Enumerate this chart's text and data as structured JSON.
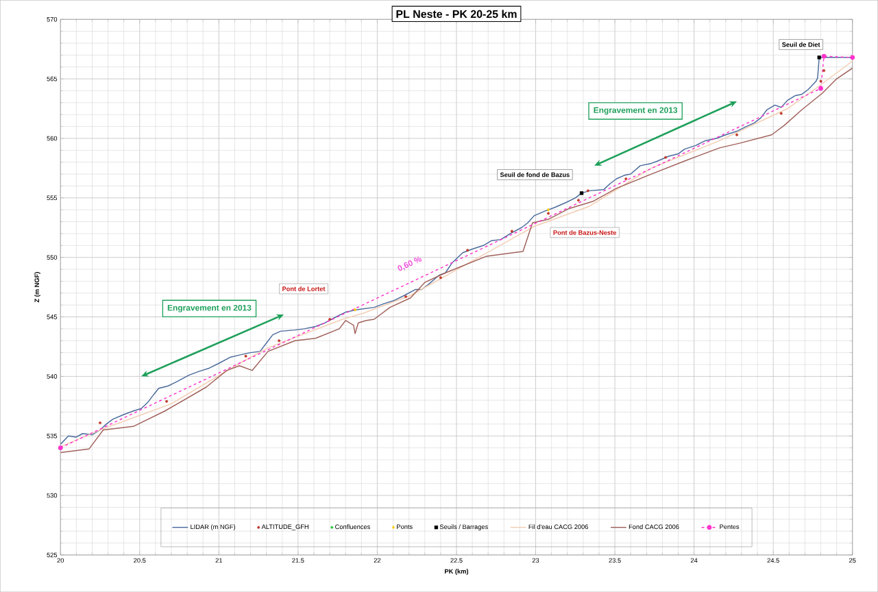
{
  "chart_data": {
    "type": "line",
    "title": "PL Neste - PK 20-25 km",
    "xlabel": "PK (km)",
    "ylabel": "Z (m NGF)",
    "xlim": [
      20,
      25
    ],
    "ylim": [
      525,
      570
    ],
    "xticks": [
      20,
      20.5,
      21,
      21.5,
      22,
      22.5,
      23,
      23.5,
      24,
      24.5,
      25
    ],
    "yticks": [
      525,
      530,
      535,
      540,
      545,
      550,
      555,
      560,
      565,
      570
    ],
    "grid": true,
    "legend": "bottom",
    "series": [
      {
        "name": "LIDAR (m NGF)",
        "color": "#4a6a9c",
        "marker": "none",
        "line_style": "solid",
        "x": [
          20.0,
          20.05,
          20.1,
          20.14,
          20.2,
          20.25,
          20.29,
          20.33,
          20.4,
          20.46,
          20.51,
          20.55,
          20.59,
          20.62,
          20.68,
          20.74,
          20.81,
          20.87,
          20.94,
          21.0,
          21.07,
          21.13,
          21.2,
          21.26,
          21.3,
          21.34,
          21.39,
          21.48,
          21.54,
          21.61,
          21.67,
          21.74,
          21.8,
          21.87,
          21.98,
          22.04,
          22.11,
          22.17,
          22.24,
          22.28,
          22.32,
          22.39,
          22.43,
          22.47,
          22.54,
          22.6,
          22.67,
          22.72,
          22.78,
          22.84,
          22.91,
          22.95,
          22.99,
          23.06,
          23.12,
          23.19,
          23.25,
          23.29,
          23.34,
          23.43,
          23.47,
          23.51,
          23.56,
          23.6,
          23.66,
          23.73,
          23.77,
          23.84,
          23.9,
          23.94,
          24.01,
          24.07,
          24.14,
          24.2,
          24.27,
          24.33,
          24.38,
          24.42,
          24.46,
          24.51,
          24.55,
          24.59,
          24.64,
          24.68,
          24.72,
          24.77,
          24.78,
          24.79,
          24.85,
          25.0
        ],
        "values": [
          534.3,
          535.0,
          534.9,
          535.2,
          535.1,
          535.5,
          536.0,
          536.4,
          536.8,
          537.1,
          537.3,
          537.8,
          538.5,
          539.0,
          539.2,
          539.6,
          540.1,
          540.4,
          540.7,
          541.1,
          541.6,
          541.8,
          542.0,
          542.1,
          542.8,
          543.5,
          543.8,
          543.9,
          544.0,
          544.2,
          544.5,
          545.0,
          545.4,
          545.6,
          545.8,
          546.1,
          546.4,
          546.8,
          547.3,
          547.3,
          547.7,
          548.5,
          548.7,
          549.5,
          550.4,
          550.7,
          551.0,
          551.4,
          551.5,
          552.0,
          552.5,
          552.9,
          553.5,
          553.9,
          554.2,
          554.6,
          555.0,
          555.4,
          555.6,
          555.7,
          556.2,
          556.6,
          556.9,
          557.0,
          557.7,
          557.9,
          558.1,
          558.5,
          558.7,
          559.1,
          559.4,
          559.8,
          560.0,
          560.3,
          560.6,
          561.0,
          561.3,
          561.7,
          562.4,
          562.8,
          562.6,
          563.2,
          563.6,
          563.7,
          564.1,
          564.8,
          565.1,
          566.8,
          566.8,
          566.8
        ]
      },
      {
        "name": "ALTITUDE_GFH",
        "type": "scatter",
        "color": "#c0392b",
        "marker": "circle",
        "x": [
          20.25,
          20.67,
          21.17,
          21.38,
          21.7,
          22.18,
          22.4,
          22.57,
          22.85,
          23.08,
          23.27,
          23.33,
          23.57,
          23.82,
          24.27,
          24.55,
          24.8,
          24.82
        ],
        "values": [
          536.1,
          537.9,
          541.7,
          543.0,
          544.8,
          546.7,
          548.3,
          550.6,
          552.2,
          553.7,
          554.8,
          555.6,
          556.6,
          558.4,
          560.3,
          562.1,
          564.8,
          565.7
        ]
      },
      {
        "name": "Confluences",
        "type": "scatter",
        "color": "#2ecc40",
        "marker": "circle"
      },
      {
        "name": "Ponts",
        "type": "scatter",
        "color": "#ffcc00",
        "marker": "diamond",
        "x": [
          21.86,
          23.08
        ],
        "values": [
          545.6,
          554.0
        ]
      },
      {
        "name": "Seuils / Barrages",
        "type": "scatter",
        "color": "#000000",
        "marker": "square",
        "x": [
          23.29,
          24.79
        ],
        "values": [
          555.4,
          566.8
        ]
      },
      {
        "name": "Fil d'eau CACG 2006",
        "color": "#f3cdb3",
        "marker": "none",
        "line_style": "solid",
        "x": [
          20.0,
          20.27,
          20.7,
          21.13,
          21.31,
          21.78,
          21.91,
          22.21,
          22.64,
          22.99,
          23.34,
          23.73,
          24.16,
          24.59,
          24.79,
          25.0
        ],
        "values": [
          534.1,
          535.6,
          537.7,
          541.1,
          542.4,
          544.8,
          545.3,
          546.8,
          550.0,
          552.6,
          554.3,
          557.5,
          559.8,
          562.5,
          564.4,
          566.5
        ]
      },
      {
        "name": "Fond CACG 2006",
        "color": "#a0605a",
        "marker": "none",
        "line_style": "solid",
        "x": [
          20.0,
          20.18,
          20.27,
          20.46,
          20.66,
          20.92,
          21.05,
          21.13,
          21.21,
          21.31,
          21.48,
          21.61,
          21.76,
          21.8,
          21.85,
          21.86,
          21.88,
          21.93,
          21.98,
          22.08,
          22.21,
          22.3,
          22.43,
          22.69,
          22.86,
          22.92,
          22.98,
          23.08,
          23.21,
          23.36,
          23.51,
          23.73,
          23.94,
          24.16,
          24.29,
          24.49,
          24.57,
          24.68,
          24.81,
          24.9,
          25.0
        ],
        "values": [
          533.6,
          533.9,
          535.5,
          535.8,
          537.1,
          539.1,
          540.5,
          540.9,
          540.5,
          542.1,
          543.0,
          543.2,
          544.0,
          544.7,
          544.3,
          543.6,
          544.5,
          544.7,
          544.8,
          545.8,
          546.6,
          547.9,
          548.7,
          550.1,
          550.4,
          550.5,
          552.9,
          553.2,
          554.1,
          554.7,
          555.8,
          557.0,
          558.1,
          559.2,
          559.6,
          560.3,
          561.1,
          562.4,
          563.8,
          565.0,
          565.9
        ]
      },
      {
        "name": "Pentes",
        "color": "#ff33cc",
        "marker": "circle",
        "line_style": "dashed",
        "x": [
          20.0,
          24.8,
          24.82,
          25.0
        ],
        "values": [
          534.0,
          564.2,
          566.9,
          566.8
        ]
      }
    ],
    "annotations": [
      "Pont de Lortet",
      "Engravement en 2013",
      "0,60 %",
      "Seuil de fond de Bazus",
      "Pont de Bazus-Neste",
      "Engravement en 2013",
      "Seuil de Diet"
    ]
  }
}
